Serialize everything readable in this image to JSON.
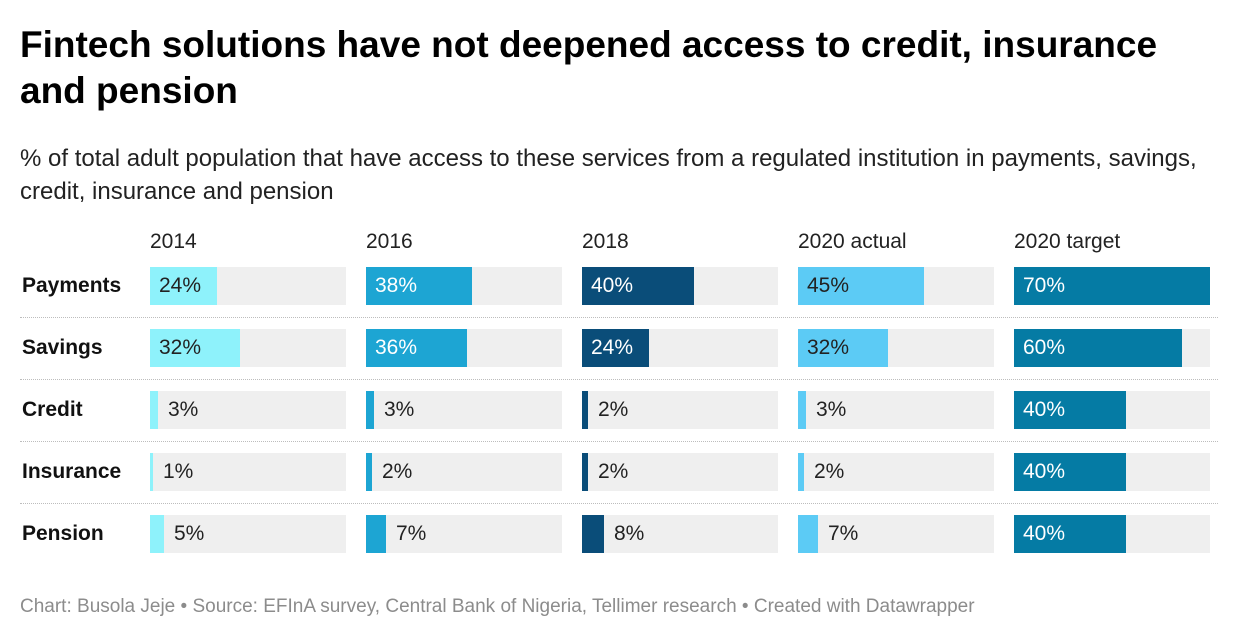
{
  "title": "Fintech solutions have not deepened access to credit, insurance and pension",
  "subtitle": "% of total adult population that have access to these services from a regulated institution in payments, savings, credit, insurance and pension",
  "footer": "Chart: Busola Jeje • Source: EFInA survey, Central Bank of Nigeria, Tellimer research • Created with Datawrapper",
  "chart_data": {
    "type": "bar",
    "layout": "small-multiples",
    "unit": "%",
    "xlim": [
      0,
      70
    ],
    "grid": false,
    "legend": "none",
    "categories": [
      "Payments",
      "Savings",
      "Credit",
      "Insurance",
      "Pension"
    ],
    "series": [
      {
        "name": "2014",
        "color": "#8ef2fb",
        "values": [
          24,
          32,
          3,
          1,
          5
        ]
      },
      {
        "name": "2016",
        "color": "#1da5d3",
        "values": [
          38,
          36,
          3,
          2,
          7
        ]
      },
      {
        "name": "2018",
        "color": "#0a4d79",
        "values": [
          40,
          24,
          2,
          2,
          8
        ]
      },
      {
        "name": "2020 actual",
        "color": "#5ccbf5",
        "values": [
          45,
          32,
          3,
          2,
          7
        ]
      },
      {
        "name": "2020 target",
        "color": "#057ba4",
        "values": [
          70,
          60,
          40,
          40,
          40
        ]
      }
    ],
    "track_color": "#efefef",
    "label_light_color": "#ffffff",
    "label_dark_color": "#222222"
  }
}
